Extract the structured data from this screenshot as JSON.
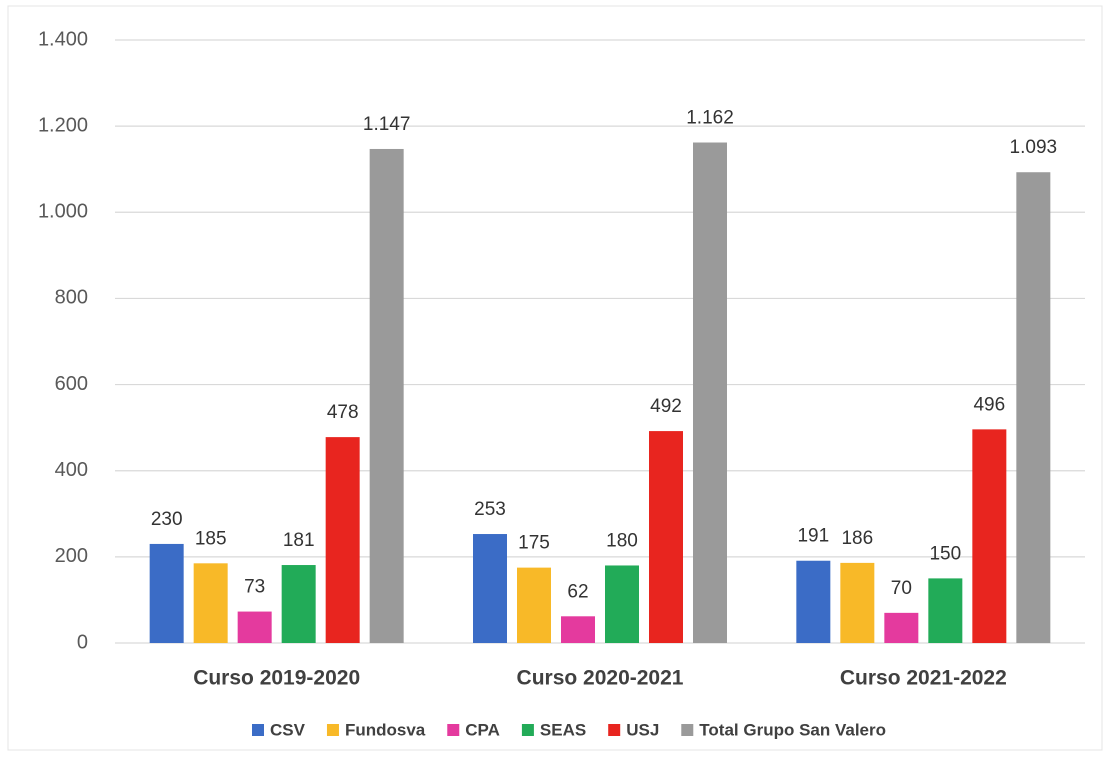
{
  "chart_data": {
    "type": "bar",
    "categories": [
      "Curso 2019-2020",
      "Curso 2020-2021",
      "Curso 2021-2022"
    ],
    "series": [
      {
        "name": "CSV",
        "color": "#3b6cc6",
        "values": [
          230,
          253,
          191
        ]
      },
      {
        "name": "Fundosva",
        "color": "#f8b928",
        "values": [
          185,
          175,
          186
        ]
      },
      {
        "name": "CPA",
        "color": "#e43a9e",
        "values": [
          73,
          62,
          70
        ]
      },
      {
        "name": "SEAS",
        "color": "#22ab58",
        "values": [
          181,
          180,
          150
        ]
      },
      {
        "name": "USJ",
        "color": "#e8251f",
        "values": [
          478,
          492,
          496
        ]
      },
      {
        "name": "Total Grupo San Valero",
        "color": "#9a9a9a",
        "values": [
          1147,
          1162,
          1093
        ],
        "value_labels": [
          "1.147",
          "1.162",
          "1.093"
        ]
      }
    ],
    "ylim": [
      0,
      1400
    ],
    "yticks": [
      0,
      200,
      400,
      600,
      800,
      {
        "value": 1000,
        "label": "1.000"
      },
      {
        "value": 1200,
        "label": "1.200"
      },
      {
        "value": 1400,
        "label": "1.400"
      }
    ],
    "grid": true,
    "legend": "bottom"
  }
}
